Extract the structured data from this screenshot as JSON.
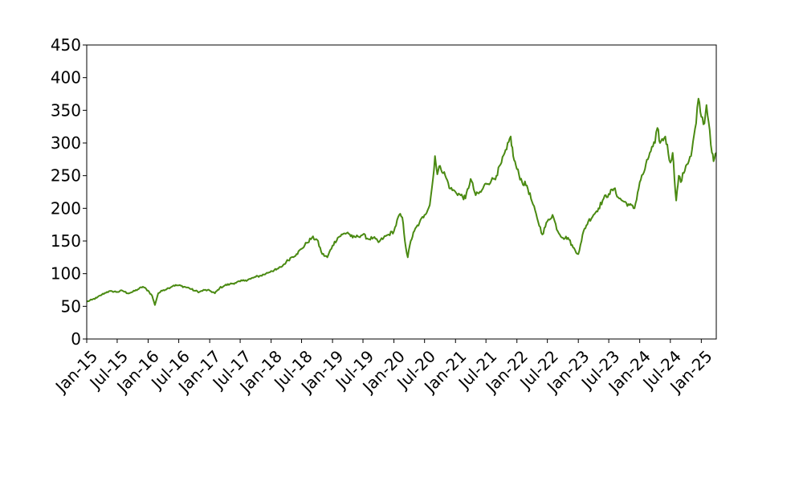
{
  "chart_data": {
    "type": "line",
    "title": "",
    "xlabel": "",
    "ylabel": "",
    "ylim": [
      0,
      450
    ],
    "xlim": [
      "2015-01-01",
      "2025-03-31"
    ],
    "grid": false,
    "line_color": "#4a8a12",
    "yticks": [
      {
        "value": 0,
        "label": "0"
      },
      {
        "value": 50,
        "label": "50"
      },
      {
        "value": 100,
        "label": "100"
      },
      {
        "value": 150,
        "label": "150"
      },
      {
        "value": 200,
        "label": "200"
      },
      {
        "value": 250,
        "label": "250"
      },
      {
        "value": 300,
        "label": "300"
      },
      {
        "value": 350,
        "label": "350"
      },
      {
        "value": 400,
        "label": "400"
      },
      {
        "value": 450,
        "label": "450"
      }
    ],
    "xticks": [
      {
        "date": "2015-01-01",
        "label": "Jan-15"
      },
      {
        "date": "2015-07-01",
        "label": "Jul-15"
      },
      {
        "date": "2016-01-01",
        "label": "Jan-16"
      },
      {
        "date": "2016-07-01",
        "label": "Jul-16"
      },
      {
        "date": "2017-01-01",
        "label": "Jan-17"
      },
      {
        "date": "2017-07-01",
        "label": "Jul-17"
      },
      {
        "date": "2018-01-01",
        "label": "Jan-18"
      },
      {
        "date": "2018-07-01",
        "label": "Jul-18"
      },
      {
        "date": "2019-01-01",
        "label": "Jan-19"
      },
      {
        "date": "2019-07-01",
        "label": "Jul-19"
      },
      {
        "date": "2020-01-01",
        "label": "Jan-20"
      },
      {
        "date": "2020-07-01",
        "label": "Jul-20"
      },
      {
        "date": "2021-01-01",
        "label": "Jan-21"
      },
      {
        "date": "2021-07-01",
        "label": "Jul-21"
      },
      {
        "date": "2022-01-01",
        "label": "Jan-22"
      },
      {
        "date": "2022-07-01",
        "label": "Jul-22"
      },
      {
        "date": "2023-01-01",
        "label": "Jan-23"
      },
      {
        "date": "2023-07-01",
        "label": "Jul-23"
      },
      {
        "date": "2024-01-01",
        "label": "Jan-24"
      },
      {
        "date": "2024-07-01",
        "label": "Jul-24"
      },
      {
        "date": "2025-01-01",
        "label": "Jan-25"
      }
    ],
    "series": [
      {
        "points": [
          [
            "2015-01-01",
            57
          ],
          [
            "2015-02-01",
            60
          ],
          [
            "2015-03-01",
            63
          ],
          [
            "2015-04-01",
            68
          ],
          [
            "2015-05-01",
            72
          ],
          [
            "2015-06-01",
            73
          ],
          [
            "2015-07-01",
            72
          ],
          [
            "2015-08-01",
            74
          ],
          [
            "2015-09-01",
            70
          ],
          [
            "2015-10-01",
            72
          ],
          [
            "2015-11-01",
            76
          ],
          [
            "2015-12-01",
            80
          ],
          [
            "2016-01-01",
            74
          ],
          [
            "2016-01-25",
            66
          ],
          [
            "2016-02-10",
            52
          ],
          [
            "2016-03-01",
            70
          ],
          [
            "2016-04-01",
            75
          ],
          [
            "2016-05-01",
            78
          ],
          [
            "2016-06-01",
            82
          ],
          [
            "2016-07-01",
            82
          ],
          [
            "2016-08-01",
            80
          ],
          [
            "2016-09-01",
            78
          ],
          [
            "2016-10-01",
            74
          ],
          [
            "2016-11-01",
            72
          ],
          [
            "2016-12-01",
            75
          ],
          [
            "2017-01-01",
            74
          ],
          [
            "2017-02-01",
            70
          ],
          [
            "2017-03-01",
            78
          ],
          [
            "2017-04-01",
            82
          ],
          [
            "2017-05-01",
            84
          ],
          [
            "2017-06-01",
            86
          ],
          [
            "2017-07-01",
            88
          ],
          [
            "2017-08-01",
            90
          ],
          [
            "2017-09-01",
            92
          ],
          [
            "2017-10-01",
            95
          ],
          [
            "2017-11-01",
            97
          ],
          [
            "2017-12-01",
            100
          ],
          [
            "2018-01-01",
            104
          ],
          [
            "2018-02-01",
            106
          ],
          [
            "2018-03-01",
            110
          ],
          [
            "2018-04-01",
            118
          ],
          [
            "2018-05-01",
            125
          ],
          [
            "2018-06-01",
            130
          ],
          [
            "2018-07-01",
            138
          ],
          [
            "2018-08-01",
            147
          ],
          [
            "2018-09-01",
            155
          ],
          [
            "2018-10-01",
            152
          ],
          [
            "2018-11-01",
            130
          ],
          [
            "2018-12-01",
            125
          ],
          [
            "2019-01-01",
            143
          ],
          [
            "2019-02-01",
            155
          ],
          [
            "2019-03-01",
            160
          ],
          [
            "2019-04-01",
            163
          ],
          [
            "2019-05-01",
            155
          ],
          [
            "2019-06-01",
            157
          ],
          [
            "2019-07-01",
            160
          ],
          [
            "2019-08-01",
            153
          ],
          [
            "2019-09-01",
            155
          ],
          [
            "2019-10-01",
            148
          ],
          [
            "2019-11-01",
            155
          ],
          [
            "2019-12-01",
            160
          ],
          [
            "2020-01-01",
            165
          ],
          [
            "2020-02-01",
            190
          ],
          [
            "2020-02-20",
            186
          ],
          [
            "2020-03-12",
            140
          ],
          [
            "2020-03-23",
            125
          ],
          [
            "2020-04-10",
            150
          ],
          [
            "2020-05-01",
            165
          ],
          [
            "2020-06-01",
            178
          ],
          [
            "2020-07-01",
            190
          ],
          [
            "2020-08-01",
            205
          ],
          [
            "2020-08-20",
            245
          ],
          [
            "2020-09-01",
            280
          ],
          [
            "2020-09-15",
            252
          ],
          [
            "2020-10-01",
            265
          ],
          [
            "2020-11-01",
            250
          ],
          [
            "2020-12-01",
            230
          ],
          [
            "2021-01-01",
            225
          ],
          [
            "2021-02-01",
            220
          ],
          [
            "2021-03-01",
            215
          ],
          [
            "2021-04-01",
            245
          ],
          [
            "2021-05-01",
            220
          ],
          [
            "2021-06-01",
            225
          ],
          [
            "2021-07-01",
            238
          ],
          [
            "2021-08-01",
            242
          ],
          [
            "2021-09-01",
            250
          ],
          [
            "2021-10-01",
            270
          ],
          [
            "2021-11-01",
            290
          ],
          [
            "2021-11-25",
            310
          ],
          [
            "2021-12-10",
            280
          ],
          [
            "2022-01-01",
            260
          ],
          [
            "2022-02-01",
            240
          ],
          [
            "2022-03-01",
            235
          ],
          [
            "2022-04-01",
            210
          ],
          [
            "2022-05-01",
            185
          ],
          [
            "2022-06-01",
            160
          ],
          [
            "2022-07-01",
            180
          ],
          [
            "2022-08-01",
            190
          ],
          [
            "2022-09-01",
            165
          ],
          [
            "2022-10-01",
            155
          ],
          [
            "2022-11-01",
            155
          ],
          [
            "2022-12-01",
            140
          ],
          [
            "2023-01-01",
            130
          ],
          [
            "2023-01-20",
            150
          ],
          [
            "2023-02-01",
            165
          ],
          [
            "2023-03-01",
            180
          ],
          [
            "2023-04-01",
            190
          ],
          [
            "2023-05-01",
            200
          ],
          [
            "2023-06-01",
            215
          ],
          [
            "2023-07-01",
            222
          ],
          [
            "2023-08-01",
            230
          ],
          [
            "2023-09-01",
            215
          ],
          [
            "2023-10-01",
            210
          ],
          [
            "2023-11-01",
            205
          ],
          [
            "2023-12-01",
            200
          ],
          [
            "2024-01-01",
            240
          ],
          [
            "2024-02-01",
            260
          ],
          [
            "2024-03-01",
            285
          ],
          [
            "2024-04-01",
            300
          ],
          [
            "2024-04-15",
            323
          ],
          [
            "2024-05-01",
            300
          ],
          [
            "2024-06-01",
            310
          ],
          [
            "2024-07-01",
            270
          ],
          [
            "2024-07-15",
            285
          ],
          [
            "2024-08-05",
            212
          ],
          [
            "2024-08-20",
            250
          ],
          [
            "2024-09-01",
            240
          ],
          [
            "2024-10-01",
            265
          ],
          [
            "2024-11-01",
            280
          ],
          [
            "2024-12-01",
            330
          ],
          [
            "2024-12-15",
            368
          ],
          [
            "2025-01-01",
            340
          ],
          [
            "2025-01-20",
            330
          ],
          [
            "2025-02-01",
            358
          ],
          [
            "2025-02-20",
            320
          ],
          [
            "2025-03-05",
            285
          ],
          [
            "2025-03-15",
            272
          ],
          [
            "2025-03-31",
            285
          ]
        ]
      }
    ]
  }
}
